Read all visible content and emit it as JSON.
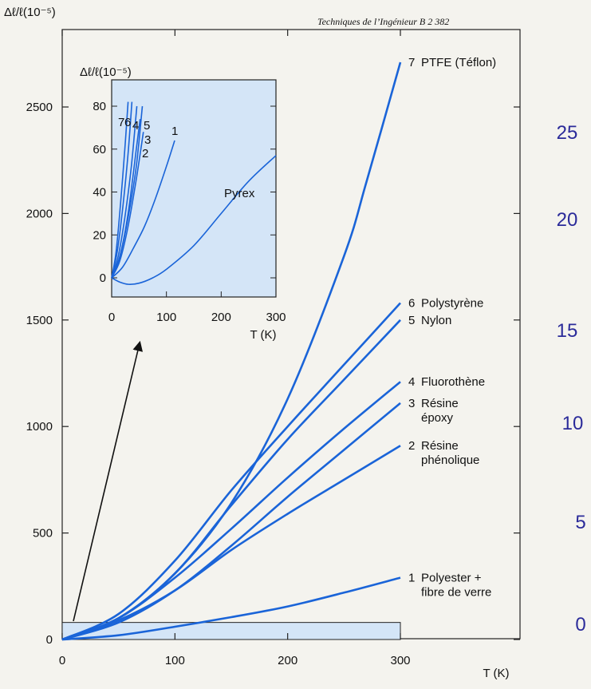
{
  "source_note": "Techniques de l’Ingénieur B 2 382",
  "side_scale": [
    "25",
    "20",
    "15",
    "10",
    "5",
    "0"
  ],
  "chart_data": [
    {
      "type": "line",
      "ylabel": "Δℓ/ℓ(10⁻⁵)",
      "xlabel": "T (K)",
      "xlim": [
        0,
        400
      ],
      "ylim": [
        0,
        2800
      ],
      "xticks": [
        "0",
        "100",
        "200",
        "300"
      ],
      "yticks": [
        "0",
        "500",
        "1000",
        "1500",
        "2000",
        "2500"
      ],
      "line_color": "#1a64d8",
      "background": "#f4f3ee",
      "series": [
        {
          "label_num": "7",
          "label": "PTFE (Téflon)",
          "x": [
            0,
            50,
            100,
            150,
            200,
            250,
            270,
            300
          ],
          "y": [
            0,
            100,
            310,
            640,
            1130,
            1800,
            2150,
            2710
          ]
        },
        {
          "label_num": "6",
          "label": "Polystyrène",
          "x": [
            0,
            50,
            100,
            150,
            200,
            250,
            300
          ],
          "y": [
            0,
            120,
            370,
            700,
            1000,
            1290,
            1580
          ]
        },
        {
          "label_num": "5",
          "label": "Nylon",
          "x": [
            0,
            50,
            100,
            150,
            200,
            250,
            300
          ],
          "y": [
            0,
            100,
            310,
            630,
            940,
            1220,
            1500
          ]
        },
        {
          "label_num": "4",
          "label": "Fluorothène",
          "x": [
            0,
            50,
            100,
            150,
            200,
            250,
            300
          ],
          "y": [
            0,
            100,
            290,
            520,
            760,
            990,
            1210
          ]
        },
        {
          "label_num": "3",
          "label": "Résine époxy",
          "x": [
            0,
            50,
            100,
            150,
            200,
            250,
            300
          ],
          "y": [
            0,
            80,
            230,
            440,
            670,
            890,
            1110
          ]
        },
        {
          "label_num": "2",
          "label": "Résine phénolique",
          "x": [
            0,
            50,
            100,
            150,
            200,
            250,
            300
          ],
          "y": [
            0,
            90,
            230,
            420,
            590,
            750,
            910
          ]
        },
        {
          "label_num": "1",
          "label": "Polyester + fibre de verre",
          "x": [
            0,
            50,
            100,
            150,
            200,
            250,
            300
          ],
          "y": [
            0,
            20,
            60,
            105,
            155,
            220,
            290
          ]
        }
      ],
      "highlight_region": {
        "x": [
          0,
          300
        ],
        "y": [
          0,
          80
        ]
      }
    },
    {
      "type": "line",
      "ylabel": "Δℓ/ℓ(10⁻⁵)",
      "xlabel": "T (K)",
      "xlim": [
        0,
        300
      ],
      "ylim": [
        -10,
        90
      ],
      "xticks": [
        "0",
        "100",
        "200",
        "300"
      ],
      "yticks": [
        "0",
        "20",
        "40",
        "60",
        "80"
      ],
      "fill": "#d4e5f7",
      "series": [
        {
          "label": "7",
          "x": [
            0,
            8,
            16,
            24,
            30
          ],
          "y": [
            0,
            12,
            34,
            60,
            82
          ]
        },
        {
          "label": "6",
          "x": [
            0,
            10,
            20,
            30,
            37
          ],
          "y": [
            0,
            12,
            32,
            58,
            82
          ]
        },
        {
          "label": "4",
          "x": [
            0,
            12,
            24,
            36,
            46
          ],
          "y": [
            0,
            10,
            28,
            52,
            80
          ]
        },
        {
          "label": "5",
          "x": [
            0,
            15,
            30,
            45,
            56
          ],
          "y": [
            0,
            10,
            28,
            52,
            80
          ]
        },
        {
          "label": "3",
          "x": [
            0,
            15,
            30,
            45,
            52
          ],
          "y": [
            0,
            10,
            30,
            60,
            74
          ]
        },
        {
          "label": "2",
          "x": [
            0,
            15,
            30,
            45,
            58
          ],
          "y": [
            0,
            8,
            24,
            46,
            68
          ]
        },
        {
          "label": "1",
          "x": [
            0,
            20,
            40,
            60,
            80,
            100,
            115
          ],
          "y": [
            0,
            5,
            14,
            24,
            37,
            52,
            64
          ]
        },
        {
          "label": "Pyrex",
          "x": [
            0,
            15,
            30,
            50,
            75,
            100,
            150,
            200,
            250,
            300
          ],
          "y": [
            0,
            -2,
            -3,
            -2.5,
            0,
            4,
            15,
            30,
            45,
            57
          ]
        }
      ]
    }
  ]
}
